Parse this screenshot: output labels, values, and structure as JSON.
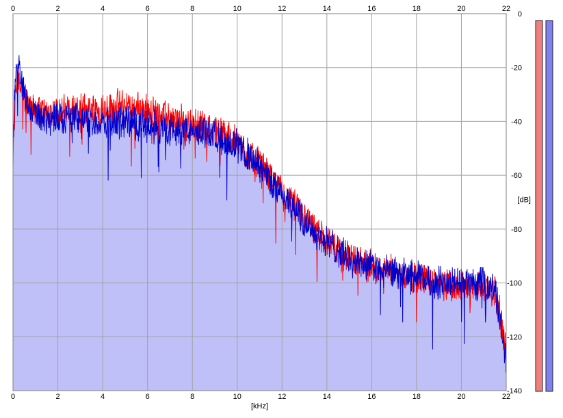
{
  "chart_data": {
    "type": "line",
    "title": "",
    "xlabel": "[kHz]",
    "ylabel": "[dB]",
    "xlim": [
      0,
      22
    ],
    "ylim": [
      -140,
      0
    ],
    "x_ticks": [
      "0",
      "2",
      "4",
      "6",
      "8",
      "10",
      "12",
      "14",
      "16",
      "18",
      "20",
      "22"
    ],
    "y_ticks": [
      "0",
      "-20",
      "-40",
      "-60",
      "-80",
      "-100",
      "-120",
      "-140"
    ],
    "grid": true,
    "area_fill": "#c0c0f8",
    "series": [
      {
        "color": "#ff0000",
        "x": [
          0,
          0.1,
          0.2,
          0.3,
          0.4,
          0.6,
          0.8,
          1.0,
          1.5,
          2.0,
          2.5,
          3.0,
          3.5,
          4.0,
          4.5,
          5.0,
          5.5,
          6.0,
          6.5,
          7.0,
          7.5,
          8.0,
          8.5,
          9.0,
          9.5,
          10.0,
          10.5,
          11.0,
          11.5,
          12.0,
          12.5,
          13.0,
          13.5,
          14.0,
          14.5,
          15.0,
          15.5,
          16.0,
          16.5,
          17.0,
          17.5,
          18.0,
          18.5,
          19.0,
          19.5,
          20.0,
          20.5,
          21.0,
          21.5,
          21.8,
          22.0
        ],
        "values": [
          -55,
          -30,
          -22,
          -25,
          -28,
          -32,
          -35,
          -35,
          -37,
          -36,
          -36,
          -35,
          -35,
          -35,
          -34,
          -34,
          -35,
          -36,
          -37,
          -39,
          -40,
          -41,
          -42,
          -43,
          -45,
          -48,
          -52,
          -56,
          -61,
          -66,
          -71,
          -76,
          -81,
          -85,
          -88,
          -90,
          -92,
          -94,
          -95,
          -96,
          -97,
          -98,
          -99,
          -100,
          -101,
          -101,
          -102,
          -102,
          -103,
          -115,
          -125
        ]
      },
      {
        "color": "#0000cc",
        "x": [
          0,
          0.1,
          0.2,
          0.3,
          0.4,
          0.6,
          0.8,
          1.0,
          1.5,
          2.0,
          2.5,
          3.0,
          3.5,
          4.0,
          4.5,
          5.0,
          5.5,
          6.0,
          6.5,
          7.0,
          7.5,
          8.0,
          8.5,
          9.0,
          9.5,
          10.0,
          10.5,
          11.0,
          11.5,
          12.0,
          12.5,
          13.0,
          13.5,
          14.0,
          14.5,
          15.0,
          15.5,
          16.0,
          16.5,
          17.0,
          17.5,
          18.0,
          18.5,
          19.0,
          19.5,
          20.0,
          20.5,
          21.0,
          21.5,
          21.8,
          22.0
        ],
        "values": [
          -50,
          -25,
          -18,
          -22,
          -26,
          -32,
          -35,
          -37,
          -39,
          -38,
          -39,
          -39,
          -40,
          -41,
          -40,
          -40,
          -41,
          -42,
          -42,
          -43,
          -43,
          -44,
          -44,
          -45,
          -47,
          -49,
          -53,
          -57,
          -62,
          -67,
          -72,
          -77,
          -81,
          -85,
          -88,
          -91,
          -93,
          -94,
          -96,
          -96,
          -97,
          -98,
          -99,
          -100,
          -100,
          -100,
          -100,
          -101,
          -102,
          -118,
          -128
        ]
      }
    ]
  },
  "meters": [
    {
      "color": "#f08080",
      "level": 1.0
    },
    {
      "color": "#8080f0",
      "level": 1.0
    }
  ]
}
